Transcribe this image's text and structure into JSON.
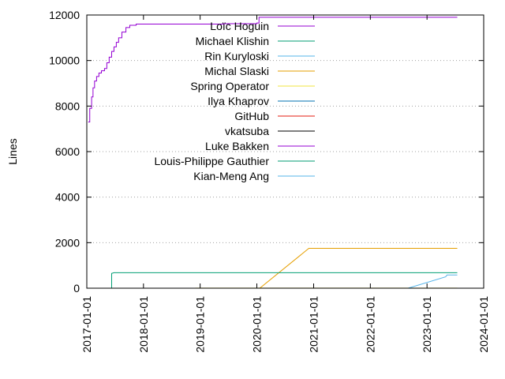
{
  "chart_data": {
    "type": "line",
    "title": "",
    "xlabel": "",
    "ylabel": "Lines",
    "xlim": [
      "2017-01-01",
      "2024-01-01"
    ],
    "ylim": [
      0,
      12000
    ],
    "x_ticks": [
      "2017-01-01",
      "2018-01-01",
      "2019-01-01",
      "2020-01-01",
      "2021-01-01",
      "2022-01-01",
      "2023-01-01",
      "2024-01-01"
    ],
    "y_ticks": [
      0,
      2000,
      4000,
      6000,
      8000,
      10000,
      12000
    ],
    "grid": "y-dotted",
    "legend_position": "top-center",
    "series": [
      {
        "name": "Loïc Hoguin",
        "color": "#9400d3",
        "points": [
          [
            "2017-01-10",
            7300
          ],
          [
            "2017-01-20",
            7900
          ],
          [
            "2017-02-01",
            8400
          ],
          [
            "2017-02-10",
            8800
          ],
          [
            "2017-02-20",
            9100
          ],
          [
            "2017-03-05",
            9300
          ],
          [
            "2017-03-20",
            9450
          ],
          [
            "2017-04-05",
            9550
          ],
          [
            "2017-04-25",
            9650
          ],
          [
            "2017-05-10",
            9900
          ],
          [
            "2017-05-25",
            10150
          ],
          [
            "2017-06-10",
            10400
          ],
          [
            "2017-06-25",
            10600
          ],
          [
            "2017-07-10",
            10800
          ],
          [
            "2017-07-25",
            11000
          ],
          [
            "2017-08-15",
            11250
          ],
          [
            "2017-09-10",
            11450
          ],
          [
            "2017-10-05",
            11550
          ],
          [
            "2017-11-15",
            11600
          ],
          [
            "2018-06-01",
            11600
          ],
          [
            "2019-06-01",
            11620
          ],
          [
            "2020-01-01",
            11650
          ],
          [
            "2020-01-15",
            11900
          ],
          [
            "2023-07-15",
            11900
          ]
        ]
      },
      {
        "name": "Michael Klishin",
        "color": "#009e73",
        "points": []
      },
      {
        "name": "Rin Kuryloski",
        "color": "#56b4e9",
        "points": []
      },
      {
        "name": "Michal Slaski",
        "color": "#e69f00",
        "points": [
          [
            "2017-01-01",
            0
          ],
          [
            "2020-01-20",
            0
          ],
          [
            "2020-12-01",
            1750
          ],
          [
            "2023-07-15",
            1750
          ]
        ]
      },
      {
        "name": "Spring Operator",
        "color": "#f0e442",
        "points": [
          [
            "2018-12-01",
            5
          ],
          [
            "2023-07-15",
            5
          ]
        ]
      },
      {
        "name": "Ilya Khaprov",
        "color": "#0072b2",
        "points": []
      },
      {
        "name": "GitHub",
        "color": "#e51e10",
        "points": []
      },
      {
        "name": "vkatsuba",
        "color": "#000000",
        "points": []
      },
      {
        "name": "Luke Bakken",
        "color": "#9400d3",
        "points": []
      },
      {
        "name": "Louis-Philippe Gauthier",
        "color": "#009e73",
        "points": [
          [
            "2017-06-10",
            0
          ],
          [
            "2017-06-10",
            650
          ],
          [
            "2017-06-25",
            680
          ],
          [
            "2023-07-15",
            680
          ]
        ]
      },
      {
        "name": "Kian-Meng Ang",
        "color": "#56b4e9",
        "points": [
          [
            "2022-09-01",
            0
          ],
          [
            "2023-05-01",
            500
          ],
          [
            "2023-05-10",
            580
          ],
          [
            "2023-07-15",
            580
          ]
        ]
      }
    ]
  }
}
